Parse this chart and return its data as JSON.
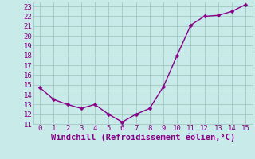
{
  "x": [
    0,
    1,
    2,
    3,
    4,
    5,
    6,
    7,
    8,
    9,
    10,
    11,
    12,
    13,
    14,
    15
  ],
  "y": [
    14.7,
    13.5,
    13.0,
    12.6,
    13.0,
    12.0,
    11.2,
    12.0,
    12.6,
    14.8,
    18.0,
    21.1,
    22.0,
    22.1,
    22.5,
    23.2
  ],
  "line_color": "#880088",
  "marker_color": "#880088",
  "bg_color": "#c8eae8",
  "grid_color": "#a0c8c0",
  "xlabel": "Windchill (Refroidissement éolien,°C)",
  "ylabel": "",
  "xlim": [
    -0.5,
    15.5
  ],
  "ylim": [
    11,
    23.5
  ],
  "yticks": [
    11,
    12,
    13,
    14,
    15,
    16,
    17,
    18,
    19,
    20,
    21,
    22,
    23
  ],
  "xticks": [
    0,
    1,
    2,
    3,
    4,
    5,
    6,
    7,
    8,
    9,
    10,
    11,
    12,
    13,
    14,
    15
  ],
  "tick_fontsize": 6.5,
  "xlabel_fontsize": 7.5,
  "line_width": 1.0,
  "marker_size": 2.5
}
